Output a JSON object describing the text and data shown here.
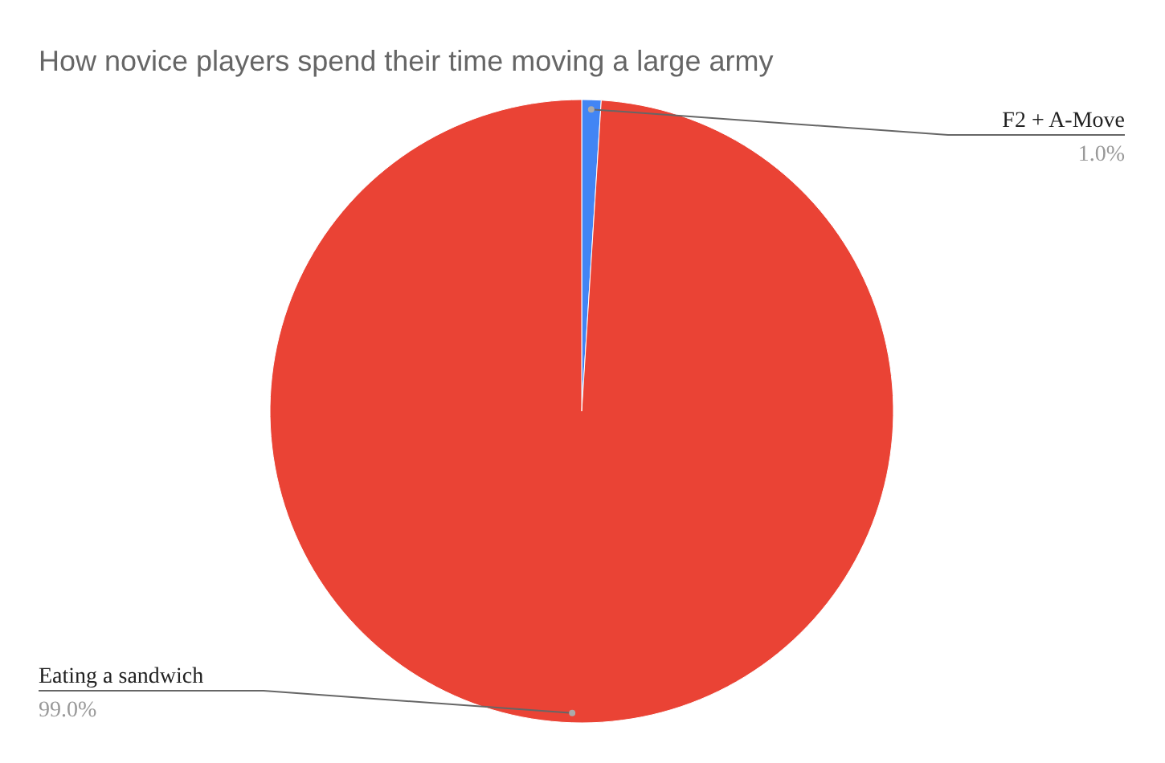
{
  "chart_data": {
    "type": "pie",
    "title": "How novice players spend their time moving a large army",
    "categories": [
      "F2 + A-Move",
      "Eating a sandwich"
    ],
    "values": [
      1.0,
      99.0
    ],
    "colors": [
      "#4285f4",
      "#ea4335"
    ],
    "value_labels": [
      "1.0%",
      "99.0%"
    ]
  }
}
